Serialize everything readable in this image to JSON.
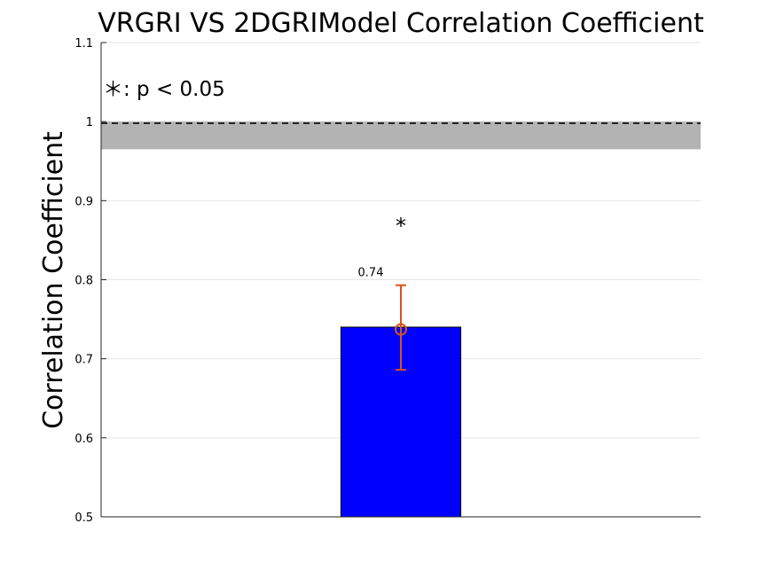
{
  "chart_data": {
    "type": "bar",
    "title": "VRGRI VS 2DGRIModel Correlation Coefficient",
    "xlabel": "",
    "ylabel": "Correlation Coefficient",
    "ylim": [
      0.5,
      1.1
    ],
    "xlim": [
      0,
      2
    ],
    "yticks": [
      0.5,
      0.6,
      0.7,
      0.8,
      0.9,
      1,
      1.1
    ],
    "ytick_labels": [
      "0.5",
      "0.6",
      "0.7",
      "0.8",
      "0.9",
      "1",
      "1.1"
    ],
    "grid": true,
    "categories": [
      ""
    ],
    "bar_x": [
      1
    ],
    "bar_width": 0.4,
    "values": [
      0.74
    ],
    "error_bars": [
      {
        "center": 0.737,
        "lower": 0.686,
        "upper": 0.793
      }
    ],
    "data_labels": [
      "0.74"
    ],
    "significance": [
      "*"
    ],
    "significance_y": [
      0.87
    ],
    "reference_line": {
      "y": 0.998,
      "style": "dashed"
    },
    "reference_band": {
      "lower": 0.965,
      "upper": 1.0
    },
    "annotation": "＊: p < 0.05",
    "colors": {
      "bar": "#0000ff",
      "error_bar": "#d95319",
      "band": "#b3b3b3",
      "grid": "#e6e6e6"
    }
  }
}
